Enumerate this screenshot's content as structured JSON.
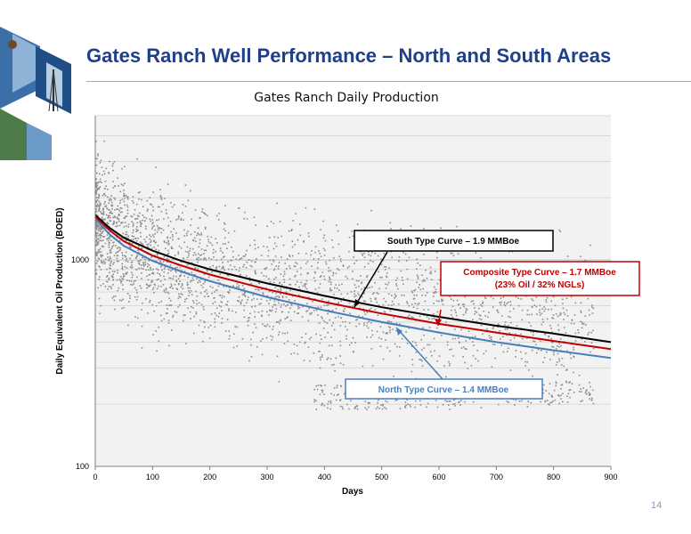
{
  "slide": {
    "title": "Gates Ranch Well Performance – North and South Areas",
    "page_number": "14"
  },
  "chart_data": {
    "type": "scatter",
    "title": "Gates Ranch Daily Production",
    "xlabel": "Days",
    "ylabel": "Daily Equivalent Oil Production (BOED)",
    "xlim": [
      0,
      900
    ],
    "ylim": [
      100,
      5000
    ],
    "y_scale": "log",
    "x_ticks": [
      "0",
      "100",
      "200",
      "300",
      "400",
      "500",
      "600",
      "700",
      "800",
      "900"
    ],
    "y_ticks": [
      "100",
      "1000"
    ],
    "grid": true,
    "scatter_color": "#8c8c8c",
    "series": [
      {
        "name": "South Type Curve – 1.9 MMBoe",
        "color": "#000000",
        "x": [
          0,
          25,
          50,
          100,
          150,
          200,
          300,
          400,
          500,
          600,
          700,
          800,
          900
        ],
        "y": [
          1650,
          1430,
          1280,
          1110,
          990,
          900,
          770,
          670,
          590,
          530,
          480,
          440,
          400
        ]
      },
      {
        "name": "Composite Type Curve – 1.7 MMBoe (23% Oil / 32% NGLs)",
        "color": "#c00000",
        "x": [
          0,
          25,
          50,
          100,
          150,
          200,
          300,
          400,
          500,
          600,
          700,
          800,
          900
        ],
        "y": [
          1620,
          1390,
          1230,
          1050,
          940,
          850,
          720,
          625,
          550,
          490,
          445,
          405,
          370
        ]
      },
      {
        "name": "North Type Curve – 1.4 MMBoe",
        "color": "#4a7ebb",
        "x": [
          0,
          25,
          50,
          100,
          150,
          200,
          300,
          400,
          500,
          600,
          700,
          800,
          900
        ],
        "y": [
          1580,
          1330,
          1170,
          990,
          880,
          790,
          660,
          570,
          500,
          445,
          400,
          365,
          335
        ]
      }
    ],
    "annotations": [
      {
        "text": "South Type Curve – 1.9 MMBoe",
        "color": "#000000"
      },
      {
        "text": "Composite Type Curve – 1.7 MMBoe",
        "subtext": "(23% Oil / 32% NGLs)",
        "color": "#c00000"
      },
      {
        "text": "North Type Curve – 1.4 MMBoe",
        "color": "#4a7ebb"
      }
    ]
  }
}
